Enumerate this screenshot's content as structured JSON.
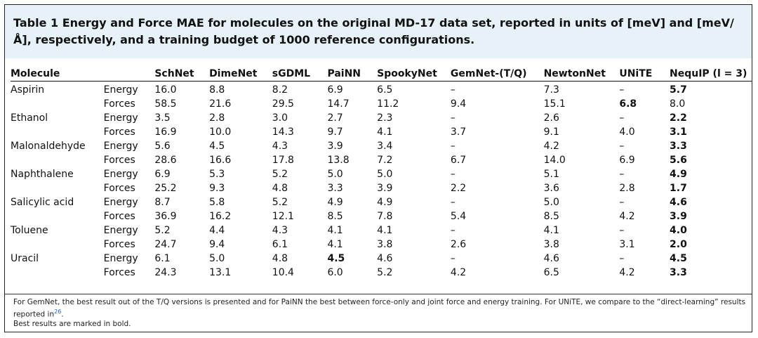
{
  "caption": "Table 1 Energy and Force MAE for molecules on the original MD-17 data set, reported in units of [meV] and [meV/Å], respectively, and a training budget of 1000 reference configurations.",
  "columns": [
    "Molecule",
    "",
    "SchNet",
    "DimeNet",
    "sGDML",
    "PaiNN",
    "SpookyNet",
    "GemNet-(T/Q)",
    "NewtonNet",
    "UNiTE",
    "NequIP (l = 3)"
  ],
  "rows": [
    {
      "molecule": "Aspirin",
      "type": "Energy",
      "values": [
        "16.0",
        "8.8",
        "8.2",
        "6.9",
        "6.5",
        "–",
        "7.3",
        "–",
        "5.7"
      ],
      "bold": [
        false,
        false,
        false,
        false,
        false,
        false,
        false,
        false,
        true
      ]
    },
    {
      "molecule": "",
      "type": "Forces",
      "values": [
        "58.5",
        "21.6",
        "29.5",
        "14.7",
        "11.2",
        "9.4",
        "15.1",
        "6.8",
        "8.0"
      ],
      "bold": [
        false,
        false,
        false,
        false,
        false,
        false,
        false,
        true,
        false
      ]
    },
    {
      "molecule": "Ethanol",
      "type": "Energy",
      "values": [
        "3.5",
        "2.8",
        "3.0",
        "2.7",
        "2.3",
        "–",
        "2.6",
        "–",
        "2.2"
      ],
      "bold": [
        false,
        false,
        false,
        false,
        false,
        false,
        false,
        false,
        true
      ]
    },
    {
      "molecule": "",
      "type": "Forces",
      "values": [
        "16.9",
        "10.0",
        "14.3",
        "9.7",
        "4.1",
        "3.7",
        "9.1",
        "4.0",
        "3.1"
      ],
      "bold": [
        false,
        false,
        false,
        false,
        false,
        false,
        false,
        false,
        true
      ]
    },
    {
      "molecule": "Malonaldehyde",
      "type": "Energy",
      "values": [
        "5.6",
        "4.5",
        "4.3",
        "3.9",
        "3.4",
        "–",
        "4.2",
        "–",
        "3.3"
      ],
      "bold": [
        false,
        false,
        false,
        false,
        false,
        false,
        false,
        false,
        true
      ]
    },
    {
      "molecule": "",
      "type": "Forces",
      "values": [
        "28.6",
        "16.6",
        "17.8",
        "13.8",
        "7.2",
        "6.7",
        "14.0",
        "6.9",
        "5.6"
      ],
      "bold": [
        false,
        false,
        false,
        false,
        false,
        false,
        false,
        false,
        true
      ]
    },
    {
      "molecule": "Naphthalene",
      "type": "Energy",
      "values": [
        "6.9",
        "5.3",
        "5.2",
        "5.0",
        "5.0",
        "–",
        "5.1",
        "–",
        "4.9"
      ],
      "bold": [
        false,
        false,
        false,
        false,
        false,
        false,
        false,
        false,
        true
      ]
    },
    {
      "molecule": "",
      "type": "Forces",
      "values": [
        "25.2",
        "9.3",
        "4.8",
        "3.3",
        "3.9",
        "2.2",
        "3.6",
        "2.8",
        "1.7"
      ],
      "bold": [
        false,
        false,
        false,
        false,
        false,
        false,
        false,
        false,
        true
      ]
    },
    {
      "molecule": "Salicylic acid",
      "type": "Energy",
      "values": [
        "8.7",
        "5.8",
        "5.2",
        "4.9",
        "4.9",
        "–",
        "5.0",
        "–",
        "4.6"
      ],
      "bold": [
        false,
        false,
        false,
        false,
        false,
        false,
        false,
        false,
        true
      ]
    },
    {
      "molecule": "",
      "type": "Forces",
      "values": [
        "36.9",
        "16.2",
        "12.1",
        "8.5",
        "7.8",
        "5.4",
        "8.5",
        "4.2",
        "3.9"
      ],
      "bold": [
        false,
        false,
        false,
        false,
        false,
        false,
        false,
        false,
        true
      ]
    },
    {
      "molecule": "Toluene",
      "type": "Energy",
      "values": [
        "5.2",
        "4.4",
        "4.3",
        "4.1",
        "4.1",
        "–",
        "4.1",
        "–",
        "4.0"
      ],
      "bold": [
        false,
        false,
        false,
        false,
        false,
        false,
        false,
        false,
        true
      ]
    },
    {
      "molecule": "",
      "type": "Forces",
      "values": [
        "24.7",
        "9.4",
        "6.1",
        "4.1",
        "3.8",
        "2.6",
        "3.8",
        "3.1",
        "2.0"
      ],
      "bold": [
        false,
        false,
        false,
        false,
        false,
        false,
        false,
        false,
        true
      ]
    },
    {
      "molecule": "Uracil",
      "type": "Energy",
      "values": [
        "6.1",
        "5.0",
        "4.8",
        "4.5",
        "4.6",
        "–",
        "4.6",
        "–",
        "4.5"
      ],
      "bold": [
        false,
        false,
        false,
        true,
        false,
        false,
        false,
        false,
        true
      ]
    },
    {
      "molecule": "",
      "type": "Forces",
      "values": [
        "24.3",
        "13.1",
        "10.4",
        "6.0",
        "5.2",
        "4.2",
        "6.5",
        "4.2",
        "3.3"
      ],
      "bold": [
        false,
        false,
        false,
        false,
        false,
        false,
        false,
        false,
        true
      ]
    }
  ],
  "footnote": {
    "line1": "For GemNet, the best result out of the T/Q versions is presented and for PaiNN the best between force-only and joint force and energy training. For UNiTE, we compare to the “direct-learning” results reported in",
    "ref": "26",
    "line1_end": ".",
    "line2": "Best results are marked in bold."
  },
  "colors": {
    "caption_bg": "#e6f1f8",
    "ref_link": "#2a5db0"
  }
}
